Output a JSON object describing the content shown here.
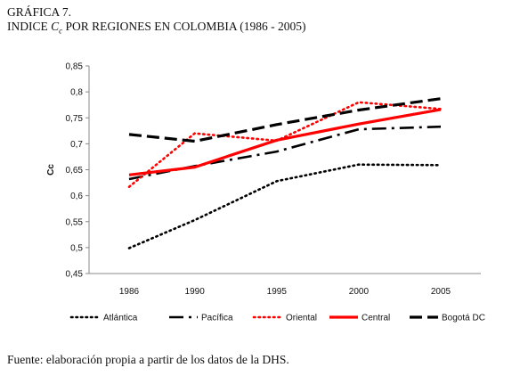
{
  "figure": {
    "number": "GRÁFICA 7.",
    "title_prefix": "INDICE ",
    "title_var": "C",
    "title_sub": "c",
    "title_suffix": " POR REGIONES EN COLOMBIA (1986 - 2005)",
    "source": "Fuente: elaboración propia a partir de los datos de la DHS."
  },
  "chart_data": {
    "type": "line",
    "title": "INDICE Cc POR REGIONES EN COLOMBIA (1986 - 2005)",
    "xlabel": "",
    "ylabel": "Cc",
    "x": [
      1986,
      1990,
      1995,
      2000,
      2005
    ],
    "x_tick_labels": [
      "1986",
      "1990",
      "1995",
      "2000",
      "2005"
    ],
    "ylim": [
      0.45,
      0.85
    ],
    "y_ticks": [
      0.45,
      0.5,
      0.55,
      0.6,
      0.65,
      0.7,
      0.75,
      0.8,
      0.85
    ],
    "y_tick_labels": [
      "0,45",
      "0,5",
      "0,55",
      "0,6",
      "0,65",
      "0,7",
      "0,75",
      "0,8",
      "0,85"
    ],
    "grid": false,
    "legend_position": "bottom",
    "series": [
      {
        "name": "Atlántica",
        "color": "#000000",
        "style": "dotted",
        "values": [
          0.499,
          0.553,
          0.628,
          0.66,
          0.659
        ]
      },
      {
        "name": "Pacífica",
        "color": "#000000",
        "style": "dashdot",
        "values": [
          0.632,
          0.657,
          0.685,
          0.728,
          0.733
        ]
      },
      {
        "name": "Oriental",
        "color": "#ff0000",
        "style": "dotted",
        "values": [
          0.617,
          0.72,
          0.706,
          0.78,
          0.767
        ]
      },
      {
        "name": "Central",
        "color": "#ff0000",
        "style": "solid",
        "values": [
          0.64,
          0.655,
          0.707,
          0.738,
          0.766
        ]
      },
      {
        "name": "Bogotá DC",
        "color": "#000000",
        "style": "dashed",
        "values": [
          0.718,
          0.705,
          0.737,
          0.765,
          0.787
        ]
      }
    ]
  }
}
